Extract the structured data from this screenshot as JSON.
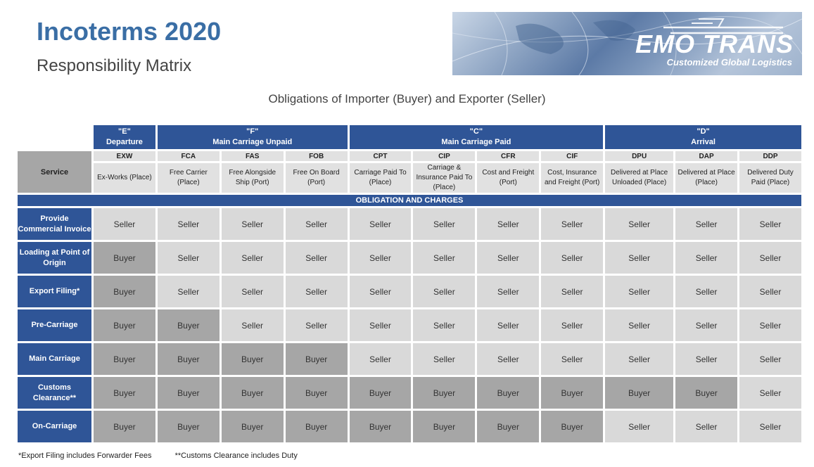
{
  "header": {
    "title": "Incoterms 2020",
    "subtitle": "Responsibility Matrix"
  },
  "logo": {
    "brand": "EMO TRANS",
    "tagline": "Customized Global Logistics"
  },
  "caption": "Obligations of Importer (Buyer) and Exporter (Seller)",
  "matrix": {
    "service_label": "Service",
    "groups": [
      {
        "code": "\"E\"",
        "name": "Departure",
        "span": 1
      },
      {
        "code": "\"F\"",
        "name": "Main Carriage Unpaid",
        "span": 3
      },
      {
        "code": "\"C\"",
        "name": "Main Carriage Paid",
        "span": 4
      },
      {
        "code": "\"D\"",
        "name": "Arrival",
        "span": 3
      }
    ],
    "terms": [
      {
        "code": "EXW",
        "name": "Ex-Works (Place)"
      },
      {
        "code": "FCA",
        "name": "Free Carrier (Place)"
      },
      {
        "code": "FAS",
        "name": "Free Alongside Ship (Port)"
      },
      {
        "code": "FOB",
        "name": "Free On Board (Port)"
      },
      {
        "code": "CPT",
        "name": "Carriage Paid To (Place)"
      },
      {
        "code": "CIP",
        "name": "Carriage & Insurance Paid To (Place)"
      },
      {
        "code": "CFR",
        "name": "Cost and Freight (Port)"
      },
      {
        "code": "CIF",
        "name": "Cost, Insurance and Freight (Port)"
      },
      {
        "code": "DPU",
        "name": "Delivered at Place Unloaded (Place)"
      },
      {
        "code": "DAP",
        "name": "Delivered at Place (Place)"
      },
      {
        "code": "DDP",
        "name": "Delivered Duty Paid (Place)"
      }
    ],
    "band_label": "OBLIGATION AND CHARGES",
    "rows": [
      {
        "label": "Provide Commercial Invoice",
        "values": [
          "Seller",
          "Seller",
          "Seller",
          "Seller",
          "Seller",
          "Seller",
          "Seller",
          "Seller",
          "Seller",
          "Seller",
          "Seller"
        ]
      },
      {
        "label": "Loading at Point of Origin",
        "values": [
          "Buyer",
          "Seller",
          "Seller",
          "Seller",
          "Seller",
          "Seller",
          "Seller",
          "Seller",
          "Seller",
          "Seller",
          "Seller"
        ]
      },
      {
        "label": "Export Filing*",
        "values": [
          "Buyer",
          "Seller",
          "Seller",
          "Seller",
          "Seller",
          "Seller",
          "Seller",
          "Seller",
          "Seller",
          "Seller",
          "Seller"
        ]
      },
      {
        "label": "Pre-Carriage",
        "values": [
          "Buyer",
          "Buyer",
          "Seller",
          "Seller",
          "Seller",
          "Seller",
          "Seller",
          "Seller",
          "Seller",
          "Seller",
          "Seller"
        ]
      },
      {
        "label": "Main Carriage",
        "values": [
          "Buyer",
          "Buyer",
          "Buyer",
          "Buyer",
          "Seller",
          "Seller",
          "Seller",
          "Seller",
          "Seller",
          "Seller",
          "Seller"
        ]
      },
      {
        "label": "Customs Clearance**",
        "values": [
          "Buyer",
          "Buyer",
          "Buyer",
          "Buyer",
          "Buyer",
          "Buyer",
          "Buyer",
          "Buyer",
          "Buyer",
          "Buyer",
          "Seller"
        ]
      },
      {
        "label": "On-Carriage",
        "values": [
          "Buyer",
          "Buyer",
          "Buyer",
          "Buyer",
          "Buyer",
          "Buyer",
          "Buyer",
          "Buyer",
          "Seller",
          "Seller",
          "Seller"
        ]
      }
    ]
  },
  "footnotes": [
    "*Export Filing includes Forwarder Fees",
    "**Customs Clearance includes Duty"
  ],
  "colors": {
    "header_blue": "#2f5597",
    "title_blue": "#3a6ea5",
    "seller_gray": "#d9d9d9",
    "buyer_gray": "#a6a6a6",
    "term_gray": "#e1e1e1"
  }
}
